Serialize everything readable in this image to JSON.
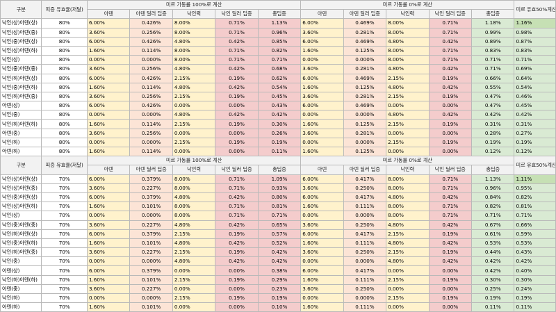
{
  "block1": {
    "header": {
      "gubun": "구분",
      "rate": "피증 유효율(저달)",
      "group1": "미르 가동률 100%로 계산",
      "group2": "미르 가동률 0%로 계산",
      "final": "미르 유효50%계산",
      "sub": [
        "아덴",
        "아덴 딜러 딥증",
        "낙인력",
        "낙인 딜러 딥증",
        "총딥증"
      ]
    },
    "rows": [
      [
        "낙인(상)아덴(상)",
        "80%",
        "6.00%",
        "0.426%",
        "8.00%",
        "0.71%",
        "1.13%",
        "6.00%",
        "0.469%",
        "8.00%",
        "0.71%",
        "1.18%",
        "1.16%"
      ],
      [
        "낙인(상)아덴(중)",
        "80%",
        "3.60%",
        "0.256%",
        "8.00%",
        "0.71%",
        "0.96%",
        "3.60%",
        "0.281%",
        "8.00%",
        "0.71%",
        "0.99%",
        "0.98%"
      ],
      [
        "낙인(중)아덴(상)",
        "80%",
        "6.00%",
        "0.426%",
        "4.80%",
        "0.42%",
        "0.85%",
        "6.00%",
        "0.469%",
        "4.80%",
        "0.42%",
        "0.89%",
        "0.87%"
      ],
      [
        "낙인(상)아덴(하)",
        "80%",
        "1.60%",
        "0.114%",
        "8.00%",
        "0.71%",
        "0.82%",
        "1.60%",
        "0.125%",
        "8.00%",
        "0.71%",
        "0.83%",
        "0.83%"
      ],
      [
        "낙인(상)",
        "80%",
        "0.00%",
        "0.000%",
        "8.00%",
        "0.71%",
        "0.71%",
        "0.00%",
        "0.000%",
        "8.00%",
        "0.71%",
        "0.71%",
        "0.71%"
      ],
      [
        "낙인(중)아덴(중)",
        "80%",
        "3.60%",
        "0.256%",
        "4.80%",
        "0.42%",
        "0.68%",
        "3.60%",
        "0.281%",
        "4.80%",
        "0.42%",
        "0.71%",
        "0.69%"
      ],
      [
        "낙인(하)아덴(상)",
        "80%",
        "6.00%",
        "0.426%",
        "2.15%",
        "0.19%",
        "0.62%",
        "6.00%",
        "0.469%",
        "2.15%",
        "0.19%",
        "0.66%",
        "0.64%"
      ],
      [
        "낙인(중)아덴(하)",
        "80%",
        "1.60%",
        "0.114%",
        "4.80%",
        "0.42%",
        "0.54%",
        "1.60%",
        "0.125%",
        "4.80%",
        "0.42%",
        "0.55%",
        "0.54%"
      ],
      [
        "낙인(하)아덴(중)",
        "80%",
        "3.60%",
        "0.256%",
        "2.15%",
        "0.19%",
        "0.45%",
        "3.60%",
        "0.281%",
        "2.15%",
        "0.19%",
        "0.47%",
        "0.46%"
      ],
      [
        "아덴(상)",
        "80%",
        "6.00%",
        "0.426%",
        "0.00%",
        "0.00%",
        "0.43%",
        "6.00%",
        "0.469%",
        "0.00%",
        "0.00%",
        "0.47%",
        "0.45%"
      ],
      [
        "낙인(중)",
        "80%",
        "0.00%",
        "0.000%",
        "4.80%",
        "0.42%",
        "0.42%",
        "0.00%",
        "0.000%",
        "4.80%",
        "0.42%",
        "0.42%",
        "0.42%"
      ],
      [
        "낙인(하)아덴(하)",
        "80%",
        "1.60%",
        "0.114%",
        "2.15%",
        "0.19%",
        "0.30%",
        "1.60%",
        "0.125%",
        "2.15%",
        "0.19%",
        "0.31%",
        "0.31%"
      ],
      [
        "아덴(중)",
        "80%",
        "3.60%",
        "0.256%",
        "0.00%",
        "0.00%",
        "0.26%",
        "3.60%",
        "0.281%",
        "0.00%",
        "0.00%",
        "0.28%",
        "0.27%"
      ],
      [
        "낙인(하)",
        "80%",
        "0.00%",
        "0.000%",
        "2.15%",
        "0.19%",
        "0.19%",
        "0.00%",
        "0.000%",
        "2.15%",
        "0.19%",
        "0.19%",
        "0.19%"
      ],
      [
        "아덴(하)",
        "80%",
        "1.60%",
        "0.114%",
        "0.00%",
        "0.00%",
        "0.11%",
        "1.60%",
        "0.125%",
        "0.00%",
        "0.00%",
        "0.12%",
        "0.12%"
      ]
    ]
  },
  "block2": {
    "header": {
      "gubun": "구분",
      "rate": "피증 유효율(저달)",
      "group1": "미르 가동률 100%로 계산",
      "group2": "미르 가동률 0%로 계산",
      "final": "미르 유효50%계산",
      "sub": [
        "아덴",
        "아덴 딜러 딥증",
        "낙인력",
        "낙인 딜러 딥증",
        "총딥증"
      ]
    },
    "rows": [
      [
        "낙인(상)아덴(상)",
        "70%",
        "6.00%",
        "0.379%",
        "8.00%",
        "0.71%",
        "1.09%",
        "6.00%",
        "0.417%",
        "8.00%",
        "0.71%",
        "1.13%",
        "1.11%"
      ],
      [
        "낙인(상)아덴(중)",
        "70%",
        "3.60%",
        "0.227%",
        "8.00%",
        "0.71%",
        "0.93%",
        "3.60%",
        "0.250%",
        "8.00%",
        "0.71%",
        "0.96%",
        "0.95%"
      ],
      [
        "낙인(중)아덴(상)",
        "70%",
        "6.00%",
        "0.379%",
        "4.80%",
        "0.42%",
        "0.80%",
        "6.00%",
        "0.417%",
        "4.80%",
        "0.42%",
        "0.84%",
        "0.82%"
      ],
      [
        "낙인(상)아덴(하)",
        "70%",
        "1.60%",
        "0.101%",
        "8.00%",
        "0.71%",
        "0.81%",
        "1.60%",
        "0.111%",
        "8.00%",
        "0.71%",
        "0.82%",
        "0.81%"
      ],
      [
        "낙인(상)",
        "70%",
        "0.00%",
        "0.000%",
        "8.00%",
        "0.71%",
        "0.71%",
        "0.00%",
        "0.000%",
        "8.00%",
        "0.71%",
        "0.71%",
        "0.71%"
      ],
      [
        "낙인(중)아덴(중)",
        "70%",
        "3.60%",
        "0.227%",
        "4.80%",
        "0.42%",
        "0.65%",
        "3.60%",
        "0.250%",
        "4.80%",
        "0.42%",
        "0.67%",
        "0.66%"
      ],
      [
        "낙인(하)아덴(상)",
        "70%",
        "6.00%",
        "0.379%",
        "2.15%",
        "0.19%",
        "0.57%",
        "6.00%",
        "0.417%",
        "2.15%",
        "0.19%",
        "0.61%",
        "0.59%"
      ],
      [
        "낙인(중)아덴(하)",
        "70%",
        "1.60%",
        "0.101%",
        "4.80%",
        "0.42%",
        "0.52%",
        "1.60%",
        "0.111%",
        "4.80%",
        "0.42%",
        "0.53%",
        "0.53%"
      ],
      [
        "낙인(하)아덴(중)",
        "70%",
        "3.60%",
        "0.227%",
        "2.15%",
        "0.19%",
        "0.42%",
        "3.60%",
        "0.250%",
        "2.15%",
        "0.19%",
        "0.44%",
        "0.43%"
      ],
      [
        "낙인(중)",
        "70%",
        "0.00%",
        "0.000%",
        "4.80%",
        "0.42%",
        "0.42%",
        "0.00%",
        "0.000%",
        "4.80%",
        "0.42%",
        "0.42%",
        "0.42%"
      ],
      [
        "아덴(상)",
        "70%",
        "6.00%",
        "0.379%",
        "0.00%",
        "0.00%",
        "0.38%",
        "6.00%",
        "0.417%",
        "0.00%",
        "0.00%",
        "0.42%",
        "0.40%"
      ],
      [
        "낙인(하)아덴(하)",
        "70%",
        "1.60%",
        "0.101%",
        "2.15%",
        "0.19%",
        "0.29%",
        "1.60%",
        "0.111%",
        "2.15%",
        "0.19%",
        "0.30%",
        "0.30%"
      ],
      [
        "아덴(중)",
        "70%",
        "3.60%",
        "0.227%",
        "0.00%",
        "0.00%",
        "0.23%",
        "3.60%",
        "0.250%",
        "0.00%",
        "0.00%",
        "0.25%",
        "0.24%"
      ],
      [
        "낙인(하)",
        "70%",
        "0.00%",
        "0.000%",
        "2.15%",
        "0.19%",
        "0.19%",
        "0.00%",
        "0.000%",
        "2.15%",
        "0.19%",
        "0.19%",
        "0.19%"
      ],
      [
        "아덴(하)",
        "70%",
        "1.60%",
        "0.101%",
        "0.00%",
        "0.00%",
        "0.10%",
        "1.60%",
        "0.111%",
        "0.00%",
        "0.00%",
        "0.11%",
        "0.11%"
      ]
    ]
  }
}
